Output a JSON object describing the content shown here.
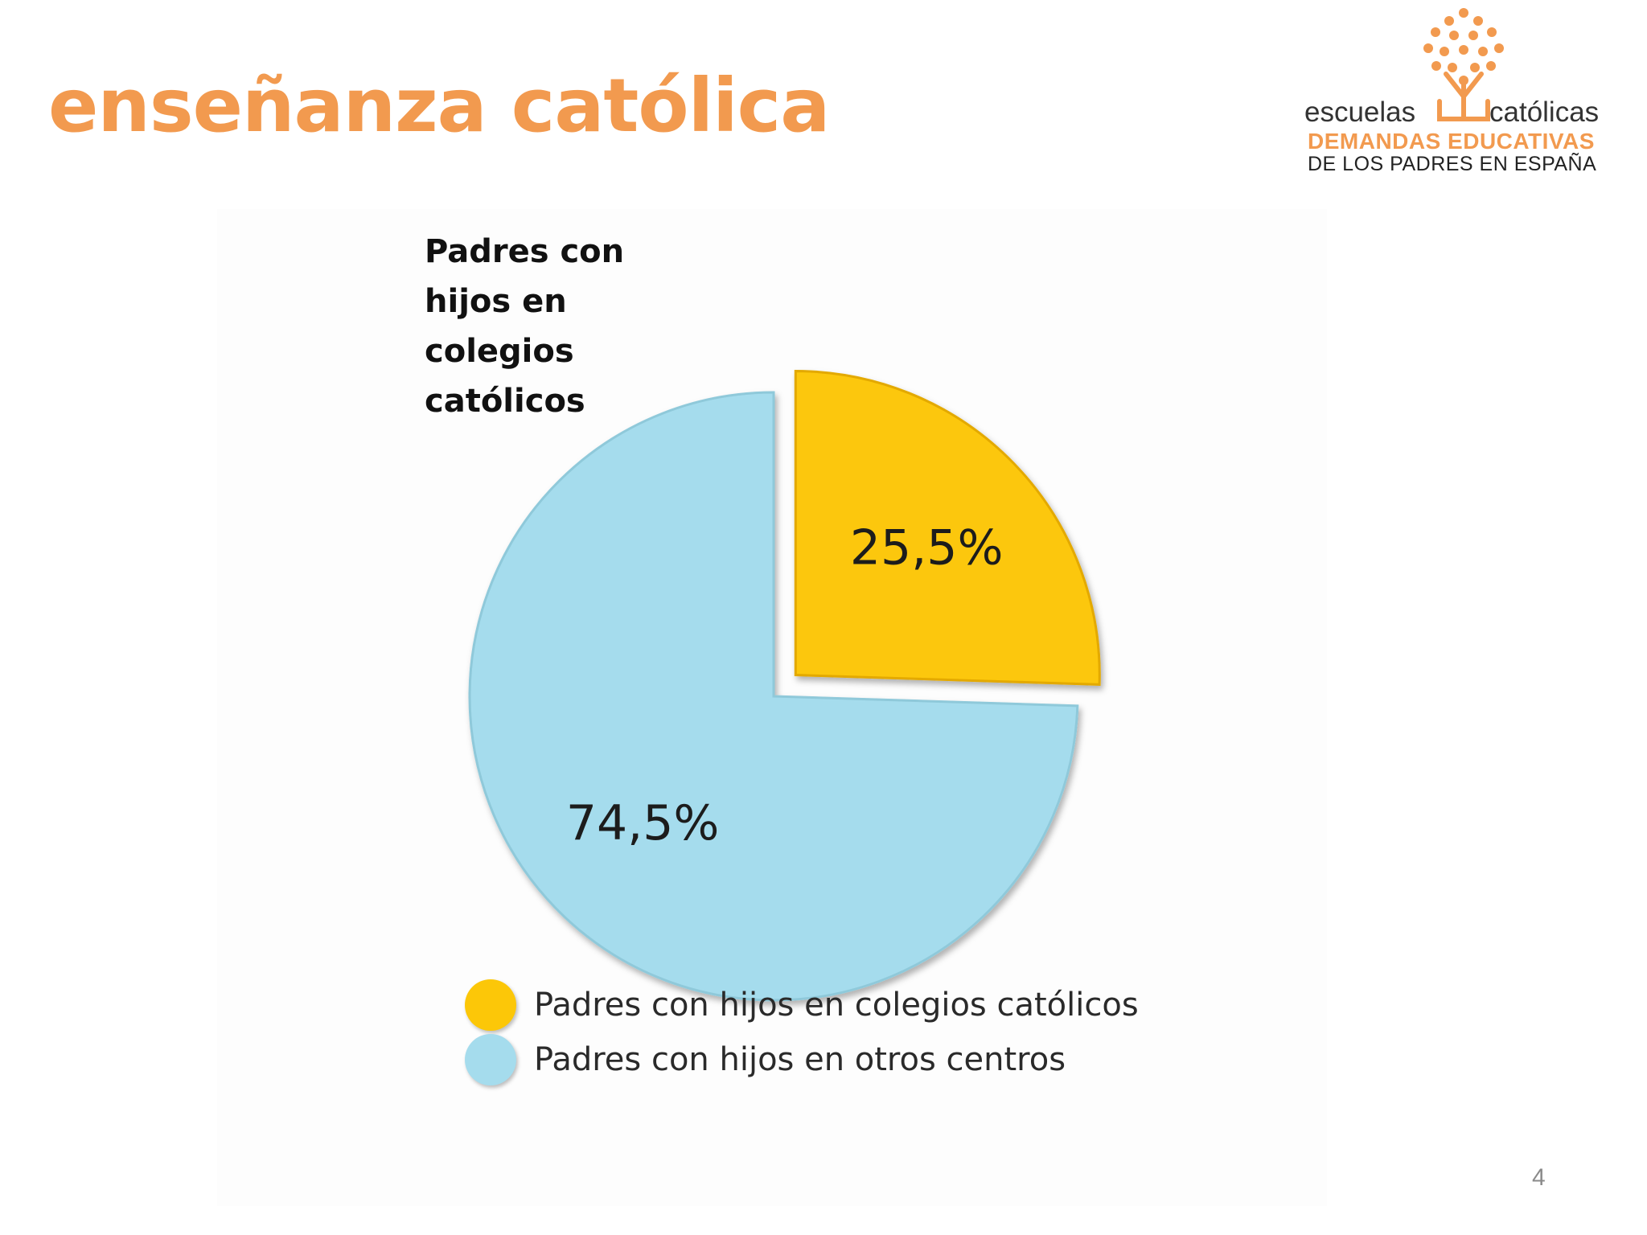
{
  "slide": {
    "title": "enseñanza católica",
    "page_number": "4"
  },
  "logo": {
    "word_left": "escuelas",
    "word_right": "católicas",
    "line1": "DEMANDAS EDUCATIVAS",
    "line2": "DE LOS PADRES EN ESPAÑA",
    "color": "#f29a4f"
  },
  "chart_data": {
    "type": "pie",
    "title": "Padres con hijos en colegios católicos",
    "slices": [
      {
        "label": "Padres con hijos en colegios católicos",
        "value": 25.5,
        "value_label": "25,5%",
        "color": "#fcc708",
        "exploded": true
      },
      {
        "label": "Padres con hijos en otros centros",
        "value": 74.5,
        "value_label": "74,5%",
        "color": "#a5dced",
        "exploded": false
      }
    ],
    "legend_position": "bottom"
  }
}
